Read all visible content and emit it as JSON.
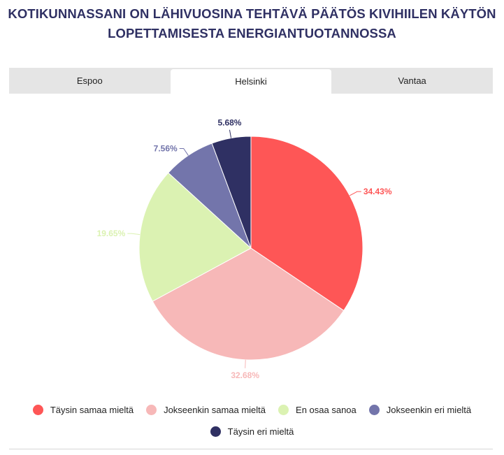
{
  "title": {
    "line1": "KOTIKUNNASSANI ON LÄHIVUOSINA TEHTÄVÄ PÄÄTÖS KIVIHIILEN KÄYTÖN",
    "line2": "LOPETTAMISESTA ENERGIANTUOTANNOSSA"
  },
  "tabs": [
    {
      "label": "Espoo",
      "active": false
    },
    {
      "label": "Helsinki",
      "active": true
    },
    {
      "label": "Vantaa",
      "active": false
    }
  ],
  "chart_data": {
    "type": "pie",
    "title": "KOTIKUNNASSANI ON LÄHIVUOSINA TEHTÄVÄ PÄÄTÖS KIVIHIILEN KÄYTÖN LOPETTAMISESTA ENERGIANTUOTANNOSSA",
    "categories": [
      "Täysin samaa mieltä",
      "Jokseenkin samaa mieltä",
      "En osaa sanoa",
      "Jokseenkin eri mieltä",
      "Täysin eri mieltä"
    ],
    "values": [
      34.43,
      32.68,
      19.65,
      7.56,
      5.68
    ],
    "data_labels": [
      "34.43%",
      "32.68%",
      "19.65%",
      "7.56%",
      "5.68%"
    ],
    "colors": [
      "#fe5656",
      "#f7b8b8",
      "#dbf2b2",
      "#7375ab",
      "#2f3063"
    ],
    "legend_position": "bottom"
  }
}
